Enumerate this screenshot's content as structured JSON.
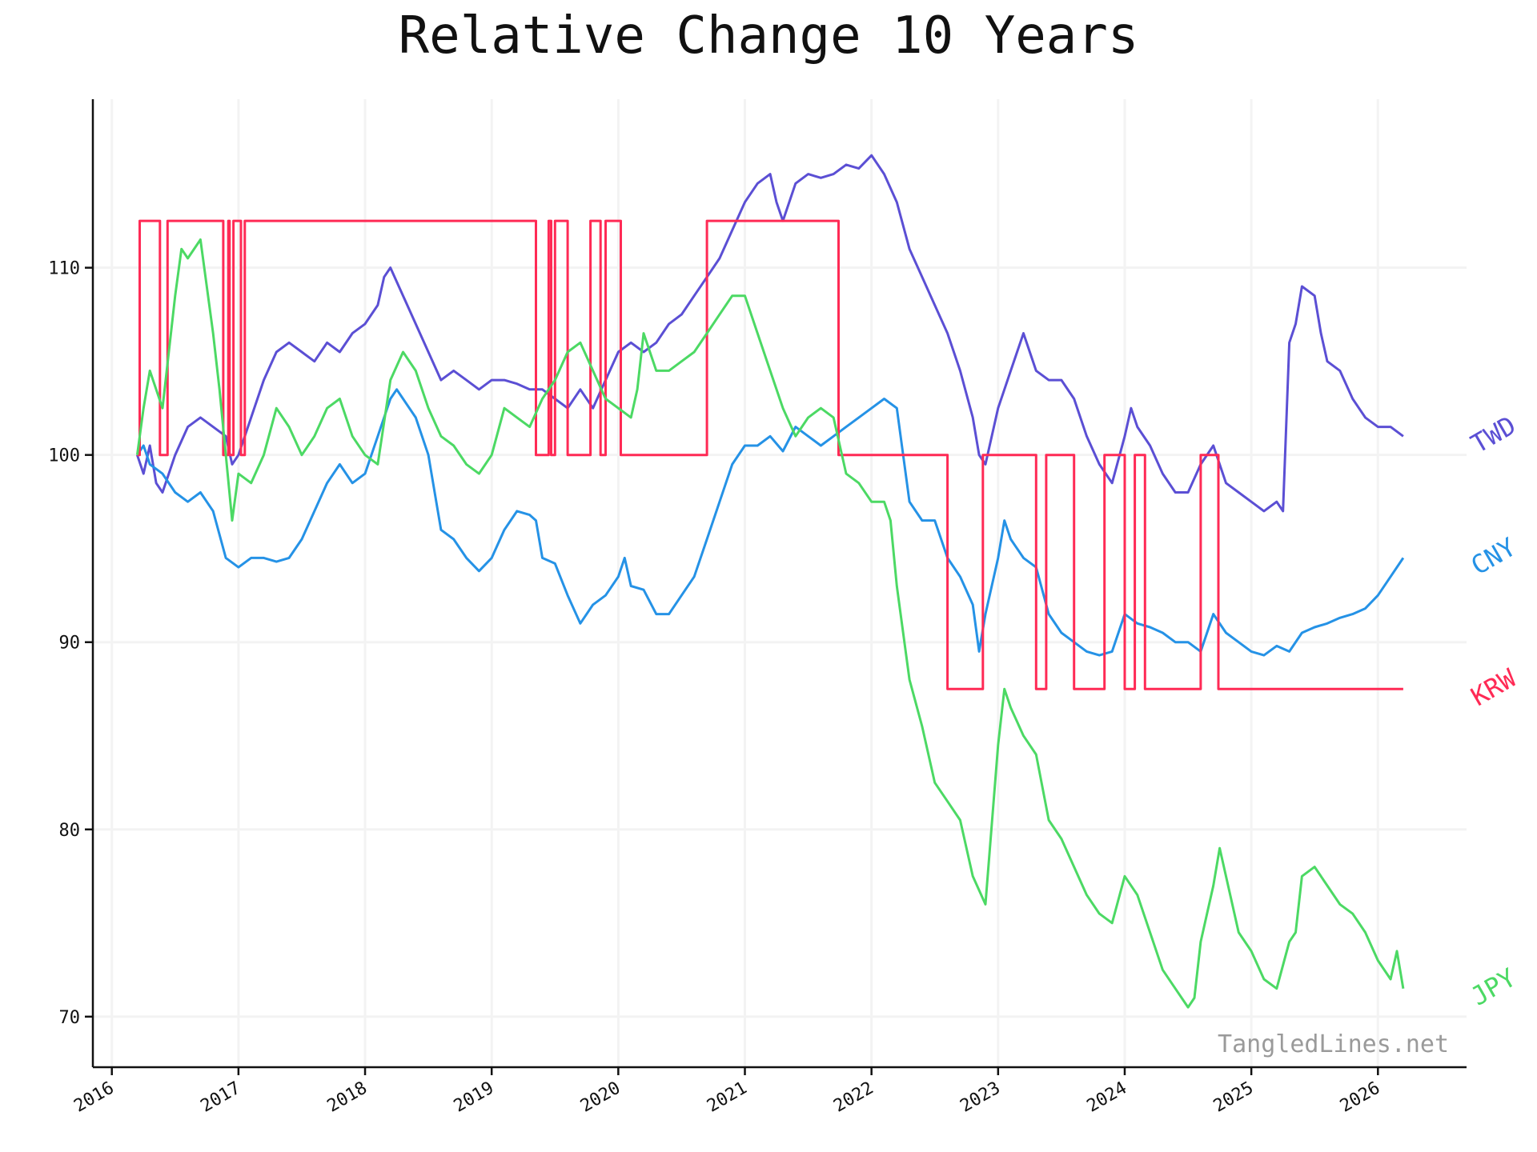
{
  "chart_data": {
    "type": "line",
    "title": "Relative Change 10 Years",
    "xlabel": "",
    "ylabel": "",
    "xlim": [
      2015.85,
      2026.7
    ],
    "ylim": [
      67.3,
      119.0
    ],
    "x_ticks": [
      2016,
      2017,
      2018,
      2019,
      2020,
      2021,
      2022,
      2023,
      2024,
      2025,
      2026
    ],
    "x_tick_labels": [
      "2016",
      "2017",
      "2018",
      "2019",
      "2020",
      "2021",
      "2022",
      "2023",
      "2024",
      "2025",
      "2026"
    ],
    "y_ticks": [
      70,
      80,
      90,
      100,
      110
    ],
    "y_tick_labels": [
      "70",
      "80",
      "90",
      "100",
      "110"
    ],
    "grid": true,
    "legend": "direct labels at right end of lines",
    "watermark": "TangledLines.net",
    "series": [
      {
        "name": "TWD",
        "color": "#5b4fd4",
        "x": [
          2016.2,
          2016.25,
          2016.3,
          2016.35,
          2016.4,
          2016.5,
          2016.6,
          2016.7,
          2016.8,
          2016.9,
          2016.95,
          2017.0,
          2017.1,
          2017.2,
          2017.3,
          2017.4,
          2017.5,
          2017.6,
          2017.7,
          2017.8,
          2017.9,
          2018.0,
          2018.1,
          2018.15,
          2018.2,
          2018.3,
          2018.4,
          2018.5,
          2018.6,
          2018.7,
          2018.8,
          2018.9,
          2019.0,
          2019.1,
          2019.2,
          2019.3,
          2019.4,
          2019.5,
          2019.6,
          2019.7,
          2019.8,
          2019.9,
          2020.0,
          2020.1,
          2020.2,
          2020.3,
          2020.4,
          2020.5,
          2020.6,
          2020.7,
          2020.8,
          2020.9,
          2021.0,
          2021.1,
          2021.2,
          2021.25,
          2021.3,
          2021.4,
          2021.5,
          2021.6,
          2021.7,
          2021.8,
          2021.9,
          2022.0,
          2022.1,
          2022.2,
          2022.3,
          2022.4,
          2022.5,
          2022.6,
          2022.7,
          2022.8,
          2022.85,
          2022.9,
          2023.0,
          2023.05,
          2023.1,
          2023.2,
          2023.3,
          2023.4,
          2023.5,
          2023.6,
          2023.7,
          2023.8,
          2023.9,
          2024.0,
          2024.05,
          2024.1,
          2024.2,
          2024.3,
          2024.4,
          2024.5,
          2024.6,
          2024.7,
          2024.8,
          2024.9,
          2025.0,
          2025.1,
          2025.2,
          2025.25,
          2025.3,
          2025.35,
          2025.4,
          2025.5,
          2025.55,
          2025.6,
          2025.7,
          2025.8,
          2025.9,
          2026.0,
          2026.1,
          2026.2
        ],
        "values": [
          100.0,
          99.0,
          100.5,
          98.5,
          98.0,
          100.0,
          101.5,
          102.0,
          101.5,
          101.0,
          99.5,
          100.0,
          102.0,
          104.0,
          105.5,
          106.0,
          105.5,
          105.0,
          106.0,
          105.5,
          106.5,
          107.0,
          108.0,
          109.5,
          110.0,
          108.5,
          107.0,
          105.5,
          104.0,
          104.5,
          104.0,
          103.5,
          104.0,
          104.0,
          103.8,
          103.5,
          103.5,
          103.0,
          102.5,
          103.5,
          102.5,
          104.0,
          105.5,
          106.0,
          105.5,
          106.0,
          107.0,
          107.5,
          108.5,
          109.5,
          110.5,
          112.0,
          113.5,
          114.5,
          115.0,
          113.5,
          112.5,
          114.5,
          115.0,
          114.8,
          115.0,
          115.5,
          115.3,
          116.0,
          115.0,
          113.5,
          111.0,
          109.5,
          108.0,
          106.5,
          104.5,
          102.0,
          100.0,
          99.5,
          102.5,
          103.5,
          104.5,
          106.5,
          104.5,
          104.0,
          104.0,
          103.0,
          101.0,
          99.5,
          98.5,
          101.0,
          102.5,
          101.5,
          100.5,
          99.0,
          98.0,
          98.0,
          99.5,
          100.5,
          98.5,
          98.0,
          97.5,
          97.0,
          97.5,
          97.0,
          106.0,
          107.0,
          109.0,
          108.5,
          106.5,
          105.0,
          104.5,
          103.0,
          102.0,
          101.5,
          101.5,
          101.0
        ]
      },
      {
        "name": "CNY",
        "color": "#2592e6",
        "x": [
          2016.2,
          2016.25,
          2016.3,
          2016.4,
          2016.5,
          2016.6,
          2016.7,
          2016.8,
          2016.9,
          2017.0,
          2017.1,
          2017.2,
          2017.3,
          2017.4,
          2017.5,
          2017.6,
          2017.7,
          2017.8,
          2017.9,
          2018.0,
          2018.1,
          2018.2,
          2018.25,
          2018.3,
          2018.4,
          2018.5,
          2018.6,
          2018.7,
          2018.8,
          2018.9,
          2019.0,
          2019.1,
          2019.2,
          2019.3,
          2019.35,
          2019.4,
          2019.5,
          2019.6,
          2019.7,
          2019.8,
          2019.9,
          2020.0,
          2020.05,
          2020.1,
          2020.2,
          2020.3,
          2020.4,
          2020.5,
          2020.6,
          2020.7,
          2020.8,
          2020.9,
          2021.0,
          2021.1,
          2021.2,
          2021.3,
          2021.4,
          2021.5,
          2021.6,
          2021.7,
          2021.8,
          2021.9,
          2022.0,
          2022.1,
          2022.2,
          2022.25,
          2022.3,
          2022.4,
          2022.5,
          2022.6,
          2022.7,
          2022.8,
          2022.85,
          2022.9,
          2023.0,
          2023.05,
          2023.1,
          2023.2,
          2023.3,
          2023.4,
          2023.5,
          2023.6,
          2023.7,
          2023.8,
          2023.9,
          2024.0,
          2024.1,
          2024.2,
          2024.3,
          2024.4,
          2024.5,
          2024.6,
          2024.7,
          2024.8,
          2024.9,
          2025.0,
          2025.1,
          2025.2,
          2025.3,
          2025.4,
          2025.5,
          2025.6,
          2025.7,
          2025.8,
          2025.9,
          2026.0,
          2026.1,
          2026.2
        ],
        "values": [
          100.0,
          100.5,
          99.5,
          99.0,
          98.0,
          97.5,
          98.0,
          97.0,
          94.5,
          94.0,
          94.5,
          94.5,
          94.3,
          94.5,
          95.5,
          97.0,
          98.5,
          99.5,
          98.5,
          99.0,
          101.0,
          103.0,
          103.5,
          103.0,
          102.0,
          100.0,
          96.0,
          95.5,
          94.5,
          93.8,
          94.5,
          96.0,
          97.0,
          96.8,
          96.5,
          94.5,
          94.2,
          92.5,
          91.0,
          92.0,
          92.5,
          93.5,
          94.5,
          93.0,
          92.8,
          91.5,
          91.5,
          92.5,
          93.5,
          95.5,
          97.5,
          99.5,
          100.5,
          100.5,
          101.0,
          100.2,
          101.5,
          101.0,
          100.5,
          101.0,
          101.5,
          102.0,
          102.5,
          103.0,
          102.5,
          100.0,
          97.5,
          96.5,
          96.5,
          94.5,
          93.5,
          92.0,
          89.5,
          91.5,
          94.5,
          96.5,
          95.5,
          94.5,
          94.0,
          91.5,
          90.5,
          90.0,
          89.5,
          89.3,
          89.5,
          91.5,
          91.0,
          90.8,
          90.5,
          90.0,
          90.0,
          89.5,
          91.5,
          90.5,
          90.0,
          89.5,
          89.3,
          89.8,
          89.5,
          90.5,
          90.8,
          91.0,
          91.3,
          91.5,
          91.8,
          92.5,
          93.5,
          94.5
        ]
      },
      {
        "name": "KRW",
        "color": "#ff2a55",
        "x": [
          2016.2,
          2016.22,
          2016.38,
          2016.44,
          2016.48,
          2016.88,
          2016.92,
          2016.93,
          2016.96,
          2017.02,
          2017.05,
          2017.06,
          2017.08,
          2019.35,
          2019.45,
          2019.47,
          2019.5,
          2019.6,
          2019.78,
          2019.86,
          2019.9,
          2020.02,
          2020.06,
          2020.7,
          2021.74,
          2021.95,
          2022.6,
          2022.62,
          2022.88,
          2022.92,
          2023.3,
          2023.38,
          2023.6,
          2023.82,
          2023.84,
          2024.0,
          2024.08,
          2024.16,
          2024.6,
          2024.74,
          2024.76,
          2026.2
        ],
        "values": [
          100.0,
          112.5,
          100.0,
          112.5,
          112.5,
          100.0,
          112.5,
          100.0,
          112.5,
          100.0,
          112.5,
          112.5,
          112.5,
          100.0,
          112.5,
          100.0,
          112.5,
          100.0,
          112.5,
          100.0,
          112.5,
          100.0,
          100.0,
          112.5,
          100.0,
          100.0,
          87.5,
          87.5,
          100.0,
          100.0,
          87.5,
          100.0,
          87.5,
          87.5,
          100.0,
          87.5,
          100.0,
          87.5,
          100.0,
          87.5,
          87.5,
          87.5
        ]
      },
      {
        "name": "JPY",
        "color": "#4cd964",
        "x": [
          2016.2,
          2016.25,
          2016.3,
          2016.35,
          2016.4,
          2016.5,
          2016.55,
          2016.6,
          2016.7,
          2016.8,
          2016.85,
          2016.9,
          2016.95,
          2017.0,
          2017.1,
          2017.2,
          2017.3,
          2017.4,
          2017.5,
          2017.6,
          2017.7,
          2017.8,
          2017.9,
          2018.0,
          2018.1,
          2018.2,
          2018.3,
          2018.4,
          2018.5,
          2018.6,
          2018.7,
          2018.8,
          2018.9,
          2019.0,
          2019.1,
          2019.2,
          2019.3,
          2019.4,
          2019.5,
          2019.6,
          2019.7,
          2019.8,
          2019.9,
          2020.0,
          2020.1,
          2020.15,
          2020.2,
          2020.3,
          2020.4,
          2020.5,
          2020.6,
          2020.7,
          2020.8,
          2020.9,
          2021.0,
          2021.1,
          2021.2,
          2021.3,
          2021.4,
          2021.5,
          2021.6,
          2021.7,
          2021.8,
          2021.9,
          2022.0,
          2022.1,
          2022.15,
          2022.2,
          2022.3,
          2022.4,
          2022.5,
          2022.6,
          2022.7,
          2022.8,
          2022.9,
          2023.0,
          2023.05,
          2023.1,
          2023.2,
          2023.3,
          2023.4,
          2023.5,
          2023.6,
          2023.7,
          2023.8,
          2023.9,
          2024.0,
          2024.1,
          2024.2,
          2024.3,
          2024.4,
          2024.5,
          2024.55,
          2024.6,
          2024.7,
          2024.75,
          2024.8,
          2024.9,
          2025.0,
          2025.1,
          2025.2,
          2025.3,
          2025.35,
          2025.4,
          2025.5,
          2025.6,
          2025.7,
          2025.8,
          2025.9,
          2026.0,
          2026.1,
          2026.15,
          2026.2
        ],
        "values": [
          100.0,
          102.5,
          104.5,
          103.5,
          102.5,
          108.5,
          111.0,
          110.5,
          111.5,
          106.5,
          103.5,
          100.0,
          96.5,
          99.0,
          98.5,
          100.0,
          102.5,
          101.5,
          100.0,
          101.0,
          102.5,
          103.0,
          101.0,
          100.0,
          99.5,
          104.0,
          105.5,
          104.5,
          102.5,
          101.0,
          100.5,
          99.5,
          99.0,
          100.0,
          102.5,
          102.0,
          101.5,
          103.0,
          104.0,
          105.5,
          106.0,
          104.5,
          103.0,
          102.5,
          102.0,
          103.5,
          106.5,
          104.5,
          104.5,
          105.0,
          105.5,
          106.5,
          107.5,
          108.5,
          108.5,
          106.5,
          104.5,
          102.5,
          101.0,
          102.0,
          102.5,
          102.0,
          99.0,
          98.5,
          97.5,
          97.5,
          96.5,
          93.0,
          88.0,
          85.5,
          82.5,
          81.5,
          80.5,
          77.5,
          76.0,
          84.5,
          87.5,
          86.5,
          85.0,
          84.0,
          80.5,
          79.5,
          78.0,
          76.5,
          75.5,
          75.0,
          77.5,
          76.5,
          74.5,
          72.5,
          71.5,
          70.5,
          71.0,
          74.0,
          77.0,
          79.0,
          77.5,
          74.5,
          73.5,
          72.0,
          71.5,
          74.0,
          74.5,
          77.5,
          78.0,
          77.0,
          76.0,
          75.5,
          74.5,
          73.0,
          72.0,
          73.5,
          71.5
        ]
      }
    ]
  }
}
